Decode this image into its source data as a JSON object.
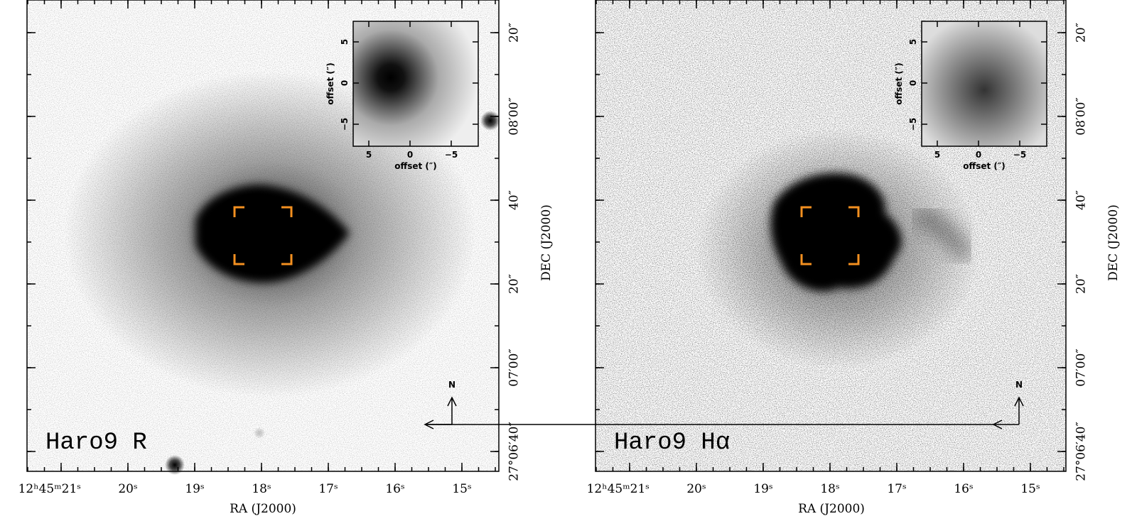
{
  "panels": [
    {
      "label": "Haro9 R",
      "ra_ticks": [
        "12ʰ45ᵐ21ˢ",
        "20ˢ",
        "19ˢ",
        "18ˢ",
        "17ˢ",
        "16ˢ",
        "15ˢ"
      ],
      "ra_label": "RA (J2000)",
      "dec_ticks": [
        "27°06′40″",
        "07′00″",
        "20″",
        "40″",
        "08′00″",
        "20″"
      ],
      "dec_label": "DEC (J2000)",
      "north": "N",
      "inset": {
        "x_label": "offset (″)",
        "y_label": "offset (″)",
        "x_ticks": [
          "5",
          "0",
          "−5"
        ],
        "y_ticks": [
          "−5",
          "0",
          "5"
        ]
      }
    },
    {
      "label": "Haro9 Hα",
      "ra_ticks": [
        "12ʰ45ᵐ21ˢ",
        "20ˢ",
        "19ˢ",
        "18ˢ",
        "17ˢ",
        "16ˢ",
        "15ˢ"
      ],
      "ra_label": "RA (J2000)",
      "dec_ticks": [
        "27°06′40″",
        "07′00″",
        "20″",
        "40″",
        "08′00″",
        "20″"
      ],
      "dec_label": "DEC (J2000)",
      "north": "N",
      "inset": {
        "x_label": "offset (″)",
        "y_label": "offset (″)",
        "x_ticks": [
          "5",
          "0",
          "−5"
        ],
        "y_ticks": [
          "−5",
          "0",
          "5"
        ]
      }
    }
  ]
}
